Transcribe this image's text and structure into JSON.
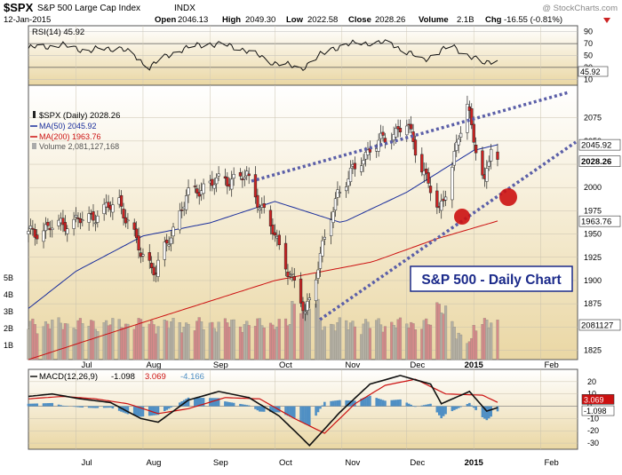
{
  "header": {
    "symbol": "$SPX",
    "name": "S&P 500 Large Cap Index",
    "exchange": "INDX",
    "date": "12-Jan-2015",
    "watermark": "@ StockCharts.com",
    "quote": {
      "open_label": "Open",
      "open": "2046.13",
      "high_label": "High",
      "high": "2049.30",
      "low_label": "Low",
      "low": "2022.58",
      "close_label": "Close",
      "close": "2028.26",
      "volume_label": "Volume",
      "volume": "2.1B",
      "chg_label": "Chg",
      "chg": "-16.55 (-0.81%)"
    }
  },
  "colors": {
    "price_up": "#ffffff",
    "price_down": "#cc2222",
    "ma50": "#1a2e9c",
    "ma200": "#cc1111",
    "volume_up": "#b4b0a4",
    "volume_down": "#d48a8a",
    "macd_hist": "#4f8fc4",
    "signal": "#cc1111",
    "trendline": "#5b5fa8",
    "bg_top": "#ffffff",
    "bg_bottom": "#ead7a4"
  },
  "chart_data": [
    {
      "type": "line",
      "panel": "rsi",
      "legend": "RSI(14) 45.92",
      "y_ticks": [
        10,
        30,
        50,
        70,
        90
      ],
      "last_value": "45.92",
      "ylim": [
        0,
        100
      ],
      "x": [
        "2014-06-09",
        "2014-06-23",
        "2014-07-07",
        "2014-07-21",
        "2014-08-04",
        "2014-08-18",
        "2014-09-01",
        "2014-09-15",
        "2014-09-29",
        "2014-10-13",
        "2014-10-27",
        "2014-11-10",
        "2014-11-24",
        "2014-12-08",
        "2014-12-22",
        "2015-01-05",
        "2015-01-12"
      ],
      "values": [
        62,
        68,
        58,
        64,
        32,
        60,
        70,
        63,
        40,
        28,
        62,
        72,
        70,
        42,
        66,
        36,
        46
      ]
    },
    {
      "type": "candlestick",
      "panel": "price",
      "legend_title": "$SPX (Daily) 2028.26",
      "legend_ma50": "MA(50) 2045.92",
      "legend_ma200": "MA(200) 1963.76",
      "legend_volume": "Volume 2,081,127,168",
      "ylim": [
        1815,
        2110
      ],
      "y_ticks": [
        "1825",
        "1850",
        "1875",
        "1900",
        "1925",
        "1950",
        "1975",
        "2000",
        "2025",
        "2050",
        "2075"
      ],
      "last_labels": [
        "2045.92",
        "2028.26",
        "1963.76",
        "2081127"
      ],
      "volume_ticks": [
        "1B",
        "2B",
        "3B",
        "4B",
        "5B"
      ],
      "x_labels": [
        "Jul",
        "Aug",
        "Sep",
        "Oct",
        "Nov",
        "Dec",
        "2015",
        "Feb"
      ],
      "annotation": "S&P 500 - Daily Chart",
      "close_anchors": [
        [
          "2014-06-09",
          1950
        ],
        [
          "2014-06-23",
          1960
        ],
        [
          "2014-07-07",
          1967
        ],
        [
          "2014-07-21",
          1985
        ],
        [
          "2014-07-31",
          1930
        ],
        [
          "2014-08-07",
          1910
        ],
        [
          "2014-08-21",
          1990
        ],
        [
          "2014-09-01",
          2005
        ],
        [
          "2014-09-18",
          2012
        ],
        [
          "2014-10-01",
          1948
        ],
        [
          "2014-10-15",
          1865
        ],
        [
          "2014-10-30",
          1995
        ],
        [
          "2014-11-14",
          2042
        ],
        [
          "2014-12-01",
          2068
        ],
        [
          "2014-12-16",
          1972
        ],
        [
          "2014-12-29",
          2088
        ],
        [
          "2015-01-06",
          2002
        ],
        [
          "2015-01-09",
          2044
        ],
        [
          "2015-01-12",
          2028
        ]
      ],
      "ma50": [
        [
          "2014-06-09",
          1870
        ],
        [
          "2014-07-01",
          1910
        ],
        [
          "2014-08-01",
          1948
        ],
        [
          "2014-09-01",
          1962
        ],
        [
          "2014-10-01",
          1985
        ],
        [
          "2014-11-01",
          1962
        ],
        [
          "2014-12-01",
          1995
        ],
        [
          "2015-01-01",
          2040
        ],
        [
          "2015-01-12",
          2046
        ]
      ],
      "ma200": [
        [
          "2014-06-09",
          1815
        ],
        [
          "2014-08-01",
          1855
        ],
        [
          "2014-10-01",
          1900
        ],
        [
          "2014-11-15",
          1920
        ],
        [
          "2014-12-15",
          1945
        ],
        [
          "2015-01-12",
          1964
        ]
      ]
    },
    {
      "type": "line",
      "panel": "macd",
      "legend_label": "MACD(12,26,9)",
      "legend_macd": "-1.098",
      "legend_signal": "3.069",
      "legend_hist": "-4.166",
      "y_ticks": [
        "20",
        "10",
        "0",
        "-10",
        "-20",
        "-30"
      ],
      "last_labels": [
        "3.069",
        "-1.098"
      ],
      "ylim": [
        -35,
        30
      ],
      "x_labels": [
        "Jul",
        "Aug",
        "Sep",
        "Oct",
        "Nov",
        "Dec",
        "2015",
        "Feb"
      ],
      "macd": [
        [
          "2014-06-09",
          8
        ],
        [
          "2014-06-20",
          10
        ],
        [
          "2014-07-03",
          6
        ],
        [
          "2014-07-17",
          3
        ],
        [
          "2014-07-31",
          -10
        ],
        [
          "2014-08-08",
          -13
        ],
        [
          "2014-08-22",
          5
        ],
        [
          "2014-09-05",
          12
        ],
        [
          "2014-09-19",
          7
        ],
        [
          "2014-10-03",
          -8
        ],
        [
          "2014-10-13",
          -25
        ],
        [
          "2014-10-17",
          -32
        ],
        [
          "2014-10-31",
          -5
        ],
        [
          "2014-11-14",
          18
        ],
        [
          "2014-11-28",
          25
        ],
        [
          "2014-12-12",
          18
        ],
        [
          "2014-12-17",
          2
        ],
        [
          "2014-12-30",
          12
        ],
        [
          "2015-01-07",
          -4
        ],
        [
          "2015-01-12",
          -1.1
        ]
      ],
      "signal": [
        [
          "2014-06-09",
          6
        ],
        [
          "2014-06-25",
          8
        ],
        [
          "2014-07-10",
          6
        ],
        [
          "2014-07-25",
          2
        ],
        [
          "2014-08-08",
          -6
        ],
        [
          "2014-08-22",
          -2
        ],
        [
          "2014-09-08",
          7
        ],
        [
          "2014-09-24",
          6
        ],
        [
          "2014-10-10",
          -10
        ],
        [
          "2014-10-24",
          -22
        ],
        [
          "2014-11-07",
          2
        ],
        [
          "2014-11-21",
          17
        ],
        [
          "2014-12-05",
          22
        ],
        [
          "2014-12-19",
          10
        ],
        [
          "2015-01-05",
          9
        ],
        [
          "2015-01-12",
          3.1
        ]
      ]
    }
  ]
}
